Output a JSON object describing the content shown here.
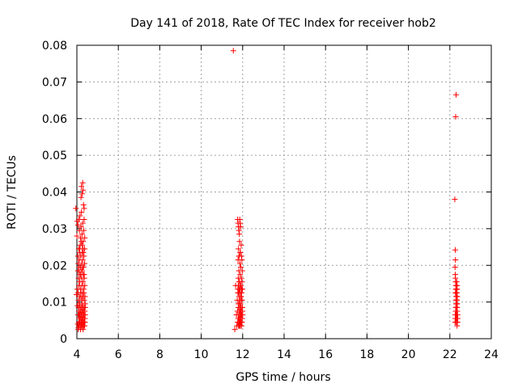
{
  "chart_data": {
    "type": "scatter",
    "title": "Day 141 of 2018, Rate Of TEC Index for receiver hob2",
    "xlabel": "GPS time / hours",
    "ylabel": "ROTI / TECUs",
    "xlim": [
      4,
      24
    ],
    "ylim": [
      0,
      0.08
    ],
    "xticks": [
      "4",
      "6",
      "8",
      "10",
      "12",
      "14",
      "16",
      "18",
      "20",
      "22",
      "24"
    ],
    "yticks": [
      "0",
      "0.01",
      "0.02",
      "0.03",
      "0.04",
      "0.05",
      "0.06",
      "0.07",
      "0.08"
    ],
    "grid": true,
    "marker": "+",
    "color": "#ff0000",
    "series": [
      {
        "x": [
          3.95,
          3.98,
          4.0,
          4.02,
          4.03,
          4.04,
          4.05,
          4.05,
          4.06,
          4.06,
          4.07,
          4.07,
          4.08,
          4.08,
          4.09,
          4.09,
          4.1,
          4.1,
          4.11,
          4.11,
          4.12,
          4.12,
          4.13,
          4.13,
          4.14,
          4.14,
          4.15,
          4.15,
          4.16,
          4.16,
          4.17,
          4.17,
          4.18,
          4.18,
          4.19,
          4.19,
          4.2,
          4.2,
          4.21,
          4.21,
          4.22,
          4.22,
          4.23,
          4.23,
          4.24,
          4.24,
          4.25,
          4.25,
          4.26,
          4.26,
          4.27,
          4.27,
          4.28,
          4.28,
          4.29,
          4.29,
          4.3,
          4.3,
          4.31,
          4.31,
          4.32,
          4.32,
          4.33,
          4.33,
          4.34,
          4.34,
          4.35,
          4.35,
          4.36,
          4.36,
          4.37,
          4.37,
          4.38,
          4.38,
          4.39,
          4.39,
          4.4,
          4.4,
          4.1,
          4.12,
          4.15,
          4.18,
          4.2,
          4.22,
          4.25,
          4.28,
          4.3,
          4.33,
          4.35,
          4.38,
          4.2,
          4.22,
          4.25,
          4.28,
          4.3,
          4.32,
          4.35,
          4.06,
          4.09,
          4.12,
          4.15,
          4.18,
          4.21,
          4.24,
          4.27,
          4.3,
          4.33,
          4.36,
          4.39,
          4.08,
          4.14,
          4.19,
          4.24,
          4.29,
          4.34,
          4.1,
          4.16,
          4.22,
          4.28,
          4.34,
          4.05,
          4.11,
          4.17,
          4.23,
          4.29,
          4.35,
          4.13,
          4.26,
          4.31,
          4.37,
          4.02,
          4.4
        ],
        "y": [
          0.0355,
          0.012,
          0.028,
          0.032,
          0.009,
          0.004,
          0.031,
          0.0225,
          0.0065,
          0.0125,
          0.003,
          0.0205,
          0.0085,
          0.0165,
          0.0045,
          0.0245,
          0.0075,
          0.0145,
          0.0055,
          0.0185,
          0.0035,
          0.0215,
          0.0095,
          0.0155,
          0.0065,
          0.0235,
          0.0045,
          0.0175,
          0.0085,
          0.0255,
          0.0055,
          0.0135,
          0.0075,
          0.0195,
          0.0035,
          0.0225,
          0.0065,
          0.0115,
          0.0045,
          0.0265,
          0.0085,
          0.0165,
          0.0055,
          0.0205,
          0.0075,
          0.0145,
          0.0035,
          0.0185,
          0.0095,
          0.0235,
          0.0045,
          0.0125,
          0.0065,
          0.0215,
          0.0055,
          0.0155,
          0.0085,
          0.0245,
          0.0035,
          0.0175,
          0.0075,
          0.0195,
          0.0045,
          0.0135,
          0.0065,
          0.0225,
          0.0055,
          0.0105,
          0.0085,
          0.0165,
          0.0035,
          0.0205,
          0.0075,
          0.0145,
          0.0045,
          0.0115,
          0.0065,
          0.0095,
          0.0325,
          0.0295,
          0.0335,
          0.0275,
          0.0305,
          0.0345,
          0.0285,
          0.0315,
          0.0265,
          0.0295,
          0.0325,
          0.0275,
          0.0385,
          0.0415,
          0.0395,
          0.0425,
          0.0405,
          0.0365,
          0.0355,
          0.0025,
          0.0035,
          0.0045,
          0.0055,
          0.0025,
          0.0035,
          0.0045,
          0.0055,
          0.0025,
          0.0035,
          0.0045,
          0.0055,
          0.0105,
          0.0115,
          0.0125,
          0.0105,
          0.0115,
          0.0125,
          0.0065,
          0.0075,
          0.0065,
          0.0075,
          0.0065,
          0.0185,
          0.0195,
          0.0175,
          0.0185,
          0.0195,
          0.0175,
          0.0245,
          0.0255,
          0.0235,
          0.0245,
          0.0135,
          0.0085
        ]
      },
      {
        "x": [
          11.55,
          11.62,
          11.66,
          11.7,
          11.72,
          11.74,
          11.75,
          11.76,
          11.77,
          11.78,
          11.78,
          11.79,
          11.79,
          11.8,
          11.8,
          11.81,
          11.81,
          11.82,
          11.82,
          11.83,
          11.83,
          11.84,
          11.84,
          11.85,
          11.85,
          11.86,
          11.86,
          11.87,
          11.87,
          11.88,
          11.88,
          11.89,
          11.89,
          11.9,
          11.9,
          11.91,
          11.91,
          11.92,
          11.92,
          11.93,
          11.93,
          11.94,
          11.94,
          11.95,
          11.95,
          11.96,
          11.96,
          11.97,
          11.97,
          11.98,
          11.98,
          11.99,
          11.99,
          12.0,
          11.76,
          11.78,
          11.8,
          11.82,
          11.84,
          11.86,
          11.88,
          11.9,
          11.8,
          11.83,
          11.86,
          11.89,
          11.92,
          11.95,
          11.78,
          11.81,
          11.84,
          11.87,
          11.9,
          11.93,
          11.96,
          11.79,
          11.85,
          11.91,
          11.97,
          11.82,
          11.88,
          11.94,
          11.77,
          11.83,
          11.89,
          11.95,
          11.99,
          11.81,
          11.87,
          11.93
        ],
        "y": [
          0.0785,
          0.0025,
          0.0145,
          0.0065,
          0.0035,
          0.0105,
          0.0075,
          0.0045,
          0.0135,
          0.0055,
          0.0215,
          0.0085,
          0.0165,
          0.0035,
          0.0245,
          0.0095,
          0.0125,
          0.0065,
          0.0185,
          0.0045,
          0.0225,
          0.0075,
          0.0155,
          0.0055,
          0.0265,
          0.0085,
          0.0135,
          0.0035,
          0.0205,
          0.0095,
          0.0175,
          0.0065,
          0.0235,
          0.0045,
          0.0145,
          0.0075,
          0.0195,
          0.0055,
          0.0115,
          0.0085,
          0.0255,
          0.0035,
          0.0165,
          0.0065,
          0.0125,
          0.0045,
          0.0215,
          0.0075,
          0.0105,
          0.0055,
          0.0185,
          0.0085,
          0.0135,
          0.0065,
          0.0325,
          0.0315,
          0.0305,
          0.0295,
          0.0285,
          0.0325,
          0.0315,
          0.0305,
          0.0095,
          0.0115,
          0.0105,
          0.0095,
          0.0115,
          0.0105,
          0.0045,
          0.0055,
          0.0035,
          0.0045,
          0.0055,
          0.0035,
          0.0045,
          0.0145,
          0.0155,
          0.0145,
          0.0155,
          0.0225,
          0.0235,
          0.0225,
          0.0125,
          0.0135,
          0.0125,
          0.0135,
          0.0075,
          0.0065,
          0.0075,
          0.0065
        ]
      },
      {
        "x": [
          22.24,
          22.28,
          22.3,
          22.26,
          22.27,
          22.25,
          22.26,
          22.27,
          22.28,
          22.29,
          22.3,
          22.31,
          22.32,
          22.33,
          22.34,
          22.35,
          22.36,
          22.37,
          22.38,
          22.25,
          22.26,
          22.27,
          22.28,
          22.29,
          22.3,
          22.31,
          22.32,
          22.33,
          22.34,
          22.35,
          22.36,
          22.37,
          22.26,
          22.28,
          22.3,
          22.32,
          22.34,
          22.36,
          22.27,
          22.29,
          22.31,
          22.33,
          22.35,
          22.37,
          22.28,
          22.3,
          22.32,
          22.34,
          22.36,
          22.29,
          22.31,
          22.33,
          22.35,
          22.3,
          22.32,
          22.34
        ],
        "y": [
          0.038,
          0.0605,
          0.0665,
          0.0242,
          0.0215,
          0.0195,
          0.0175,
          0.0165,
          0.0155,
          0.0145,
          0.0135,
          0.0125,
          0.0115,
          0.0105,
          0.0095,
          0.0085,
          0.0075,
          0.0065,
          0.0055,
          0.0045,
          0.0055,
          0.0065,
          0.0075,
          0.0085,
          0.0095,
          0.0105,
          0.0115,
          0.0125,
          0.0135,
          0.0145,
          0.0045,
          0.0055,
          0.0065,
          0.0075,
          0.0085,
          0.0095,
          0.0105,
          0.0115,
          0.0125,
          0.0135,
          0.0145,
          0.0155,
          0.0035,
          0.0045,
          0.0055,
          0.0065,
          0.0075,
          0.0085,
          0.0095,
          0.0105,
          0.0115,
          0.0125,
          0.0135,
          0.0045,
          0.0055,
          0.0065
        ]
      }
    ]
  }
}
